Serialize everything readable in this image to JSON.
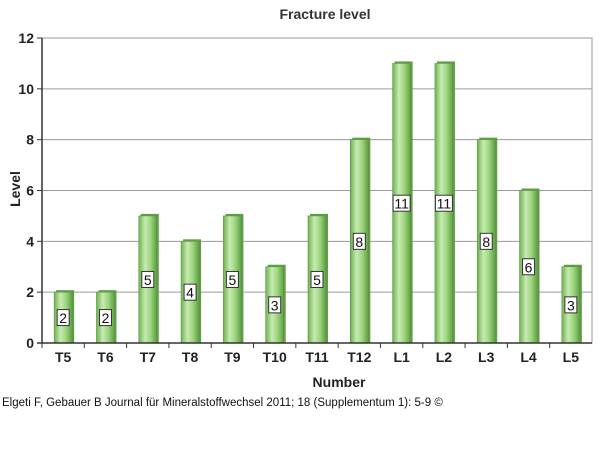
{
  "chart_data": {
    "type": "bar",
    "title": "Fracture level",
    "xlabel": "Number",
    "ylabel": "Level",
    "categories": [
      "T5",
      "T6",
      "T7",
      "T8",
      "T9",
      "T10",
      "T11",
      "T12",
      "L1",
      "L2",
      "L3",
      "L4",
      "L5"
    ],
    "values": [
      2,
      2,
      5,
      4,
      5,
      3,
      5,
      8,
      11,
      11,
      8,
      6,
      3
    ],
    "data_labels": [
      "2",
      "2",
      "5",
      "4",
      "5",
      "3",
      "5",
      "8",
      "11",
      "11",
      "8",
      "6",
      "3"
    ],
    "ylim": [
      0,
      12
    ],
    "yticks": [
      0,
      2,
      4,
      6,
      8,
      10,
      12
    ],
    "grid": true,
    "bar_color": "#8ccf6a",
    "bar_highlight": "#c6ebb2",
    "bar_shadow": "#5f9e45"
  },
  "credit": "Elgeti F, Gebauer B Journal für Mineralstoffwechsel 2011; 18 (Supplementum 1): 5-9 ©"
}
